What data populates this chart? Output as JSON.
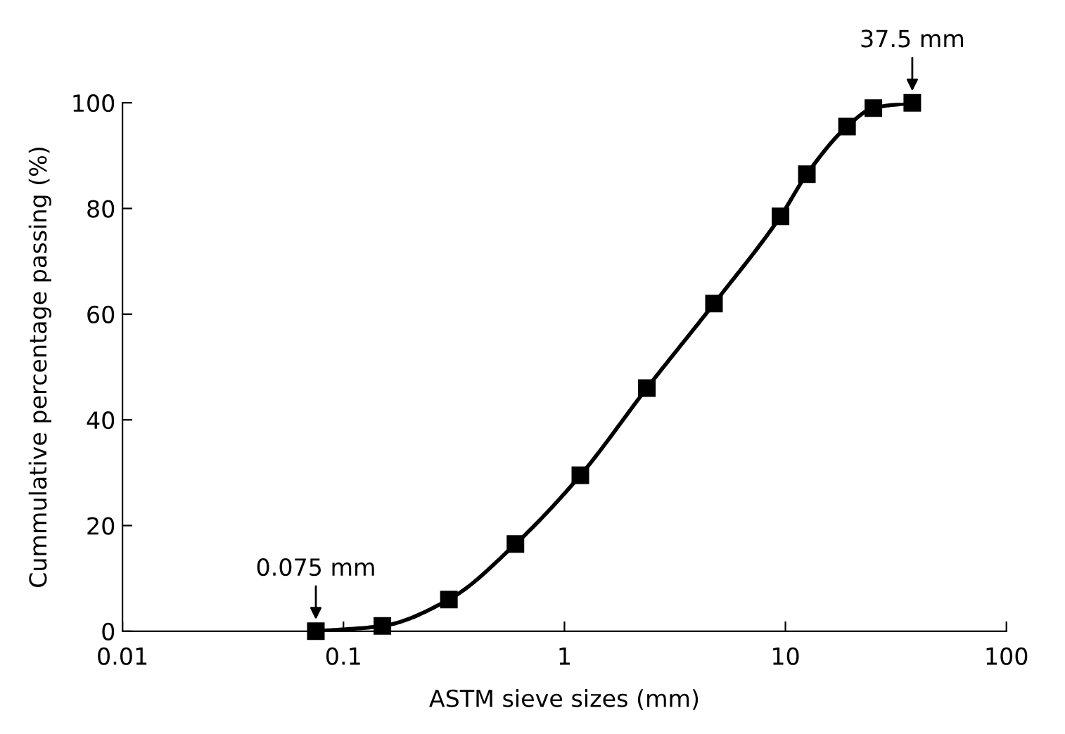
{
  "chart_data": {
    "type": "line",
    "xlabel": "ASTM sieve sizes (mm)",
    "ylabel": "Cummulative percentage passing (%)",
    "x": [
      0.075,
      0.15,
      0.3,
      0.6,
      1.18,
      2.36,
      4.75,
      9.5,
      12.5,
      19,
      25,
      37.5
    ],
    "series": [
      {
        "color": "#000000",
        "values": [
          0,
          1,
          6,
          16.5,
          29.5,
          46,
          62,
          78.5,
          86.5,
          95.5,
          99,
          100
        ]
      }
    ],
    "log": "x",
    "xlim": [
      0.01,
      100
    ],
    "xticks": [
      0.01,
      0.1,
      1,
      10,
      100
    ],
    "ylim": [
      0,
      100
    ],
    "yticks": [
      0,
      20,
      40,
      60,
      80,
      100
    ],
    "marker": "square",
    "line_style": "solid",
    "grid": false,
    "legend": false,
    "annotations": [
      {
        "text": "0.075 mm",
        "x": 0.075,
        "y": 0
      },
      {
        "text": "37.5 mm",
        "x": 37.5,
        "y": 100
      }
    ]
  }
}
